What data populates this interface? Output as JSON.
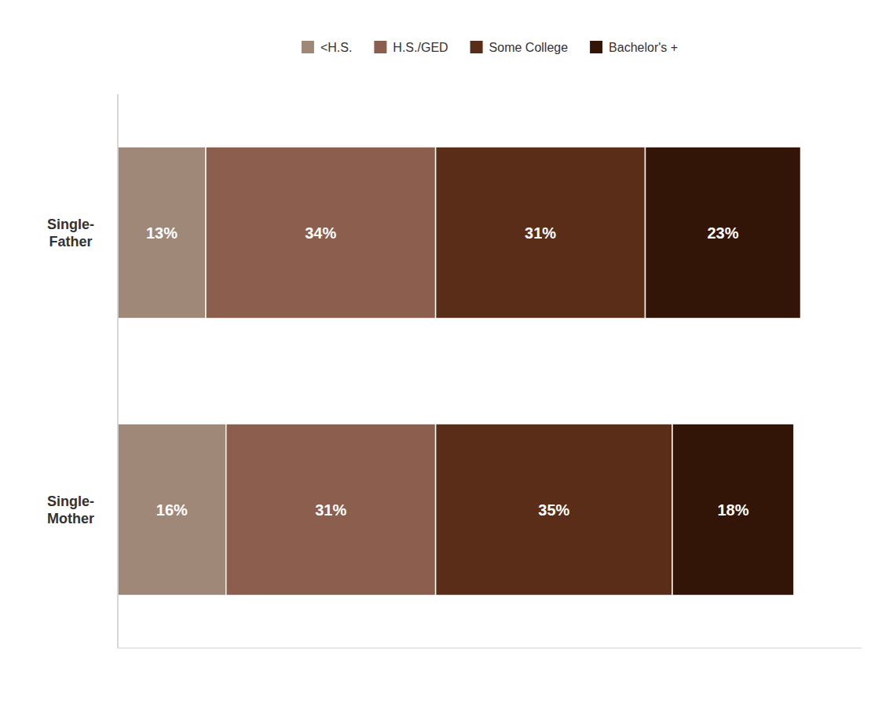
{
  "chart_data": {
    "type": "bar",
    "orientation": "horizontal",
    "stacked": true,
    "categories": [
      "Single-\nFather",
      "Single-\nMother"
    ],
    "series": [
      {
        "name": "<H.S.",
        "color": "#a08878",
        "values": [
          13,
          16
        ],
        "value_labels": [
          "13%",
          "16%"
        ]
      },
      {
        "name": "H.S./GED",
        "color": "#8b5e4e",
        "values": [
          34,
          31
        ],
        "value_labels": [
          "34%",
          "31%"
        ]
      },
      {
        "name": "Some College",
        "color": "#5a2d18",
        "values": [
          31,
          35
        ],
        "value_labels": [
          "31%",
          "35%"
        ]
      },
      {
        "name": "Bachelor's +",
        "color": "#331508",
        "values": [
          23,
          18
        ],
        "value_labels": [
          "23%",
          "18%"
        ]
      }
    ],
    "xlim": [
      0,
      110
    ],
    "data_labels": true,
    "tick_labels": "y",
    "legend": "top",
    "grid": false
  }
}
